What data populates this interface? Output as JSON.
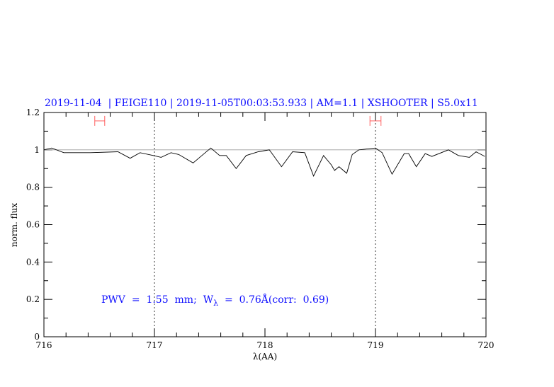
{
  "chart_data": {
    "type": "line",
    "title": "2019-11-04  | FEIGE110 | 2019-11-05T00:03:53.933 | AM=1.1 | XSHOOTER | S5.0x11",
    "xlabel": "λ(AA)",
    "ylabel": "norm. flux",
    "xlim": [
      716,
      720
    ],
    "ylim": [
      0,
      1.2
    ],
    "x_ticks": [
      "716",
      "717",
      "718",
      "719",
      "720"
    ],
    "y_ticks": [
      "0",
      "0.2",
      "0.4",
      "0.6",
      "0.8",
      "1",
      "1.2"
    ],
    "grid": false,
    "reference_line": 1.0,
    "dotted_vertical_lines": [
      717,
      719
    ],
    "intervals": [
      {
        "from": 716.46,
        "to": 716.55,
        "y": 1.155
      },
      {
        "from": 718.95,
        "to": 719.05,
        "y": 1.155
      }
    ],
    "annotation": {
      "prefix": "PWV  =  1.55  mm;  W",
      "subscript": "λ",
      "suffix": "  =  0.76Å(corr:  0.69)"
    },
    "series": [
      {
        "color": "#000000",
        "x": [
          716.0,
          716.07,
          716.18,
          716.42,
          716.67,
          716.78,
          716.87,
          716.99,
          717.06,
          717.15,
          717.22,
          717.35,
          717.4,
          717.51,
          717.59,
          717.65,
          717.74,
          717.83,
          717.94,
          718.04,
          718.15,
          718.25,
          718.36,
          718.44,
          718.53,
          718.6,
          718.63,
          718.67,
          718.74,
          718.79,
          718.85,
          719.0,
          719.06,
          719.15,
          719.26,
          719.3,
          719.37,
          719.45,
          719.51,
          719.66,
          719.75,
          719.85,
          719.91,
          719.99
        ],
        "y": [
          1.0,
          1.01,
          0.985,
          0.985,
          0.99,
          0.955,
          0.985,
          0.97,
          0.96,
          0.985,
          0.975,
          0.93,
          0.955,
          1.01,
          0.97,
          0.97,
          0.9,
          0.97,
          0.99,
          1.0,
          0.91,
          0.99,
          0.985,
          0.86,
          0.97,
          0.92,
          0.89,
          0.91,
          0.875,
          0.975,
          1.0,
          1.01,
          0.985,
          0.87,
          0.98,
          0.98,
          0.91,
          0.98,
          0.965,
          1.0,
          0.97,
          0.96,
          0.99,
          0.965
        ]
      }
    ],
    "colors": {
      "title": "#1010ff",
      "reference_line": "#e05050",
      "interval": "#ff6060"
    }
  }
}
